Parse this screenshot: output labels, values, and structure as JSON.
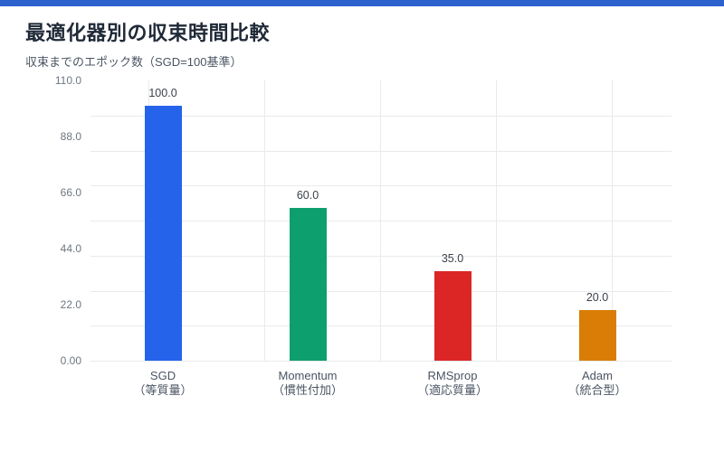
{
  "page": {
    "accent_color": "#2e62cf",
    "background": "#ffffff"
  },
  "header": {
    "title": "最適化器別の収束時間比較",
    "subtitle": "収束までのエポック数（SGD=100基準）"
  },
  "chart_data": {
    "type": "bar",
    "title": "最適化器別の収束時間比較",
    "subtitle": "収束までのエポック数（SGD=100基準）",
    "categories": [
      "SGD",
      "Momentum",
      "RMSprop",
      "Adam"
    ],
    "category_sublabels": [
      "（等質量）",
      "（慣性付加）",
      "（適応質量）",
      "（統合型）"
    ],
    "values": [
      100,
      60,
      35,
      20
    ],
    "value_labels": [
      "100.0",
      "60.0",
      "35.0",
      "20.0"
    ],
    "bar_colors": [
      "#2563eb",
      "#0e9f6e",
      "#dc2626",
      "#d97d06"
    ],
    "xlabel": "",
    "ylabel": "",
    "ylim": [
      0,
      110
    ],
    "yticks": [
      {
        "label": "110.0",
        "value": 110
      },
      {
        "label": "88.0",
        "value": 88
      },
      {
        "label": "66.0",
        "value": 66
      },
      {
        "label": "44.0",
        "value": 44
      },
      {
        "label": "22.0",
        "value": 22
      },
      {
        "label": "0.00",
        "value": 0
      }
    ],
    "grid": true,
    "legend_position": "none",
    "gridline_color": "#e8eaed"
  }
}
